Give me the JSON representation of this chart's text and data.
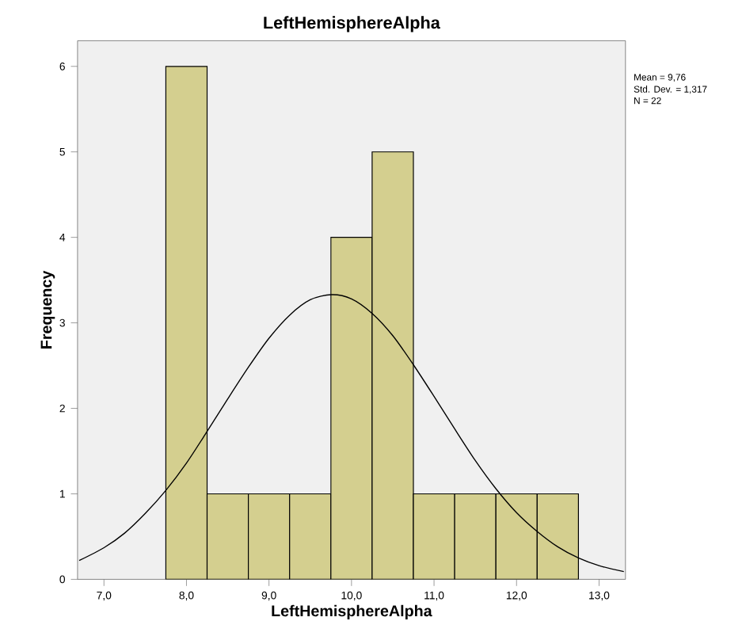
{
  "chart_data": {
    "type": "histogram",
    "title": "LeftHemisphereAlpha",
    "xlabel": "LeftHemisphereAlpha",
    "ylabel": "Frequency",
    "bins": [
      7.75,
      8.25,
      8.75,
      9.25,
      9.75,
      10.25,
      10.75,
      11.25,
      11.75,
      12.25,
      12.75
    ],
    "values": [
      6,
      1,
      1,
      1,
      4,
      5,
      1,
      1,
      1,
      1
    ],
    "color": "#d4cf8f",
    "series": [
      {
        "type": "line",
        "color": "#000000",
        "x": [
          6.7,
          7.0,
          7.25,
          7.5,
          7.75,
          8.0,
          8.25,
          8.5,
          8.75,
          9.0,
          9.25,
          9.5,
          9.76,
          10.0,
          10.25,
          10.5,
          10.75,
          11.0,
          11.25,
          11.5,
          11.75,
          12.0,
          12.25,
          12.5,
          12.75,
          13.0,
          13.3
        ],
        "values": [
          0.22,
          0.37,
          0.54,
          0.77,
          1.04,
          1.36,
          1.73,
          2.11,
          2.48,
          2.82,
          3.09,
          3.27,
          3.33,
          3.28,
          3.11,
          2.85,
          2.51,
          2.14,
          1.76,
          1.39,
          1.06,
          0.78,
          0.56,
          0.38,
          0.25,
          0.16,
          0.09
        ]
      }
    ],
    "xlim": [
      6.68,
      13.32
    ],
    "ylim": [
      0,
      6.3
    ],
    "xticks": [
      {
        "value": 7,
        "label": "7,0"
      },
      {
        "value": 8,
        "label": "8,0"
      },
      {
        "value": 9,
        "label": "9,0"
      },
      {
        "value": 10,
        "label": "10,0"
      },
      {
        "value": 11,
        "label": "11,0"
      },
      {
        "value": 12,
        "label": "12,0"
      },
      {
        "value": 13,
        "label": "13,0"
      }
    ],
    "yticks": [
      0,
      1,
      2,
      3,
      4,
      5,
      6
    ],
    "grid": false,
    "annotations": [
      "Mean = 9,76",
      "Std. Dev. = 1,317",
      "N = 22"
    ]
  }
}
